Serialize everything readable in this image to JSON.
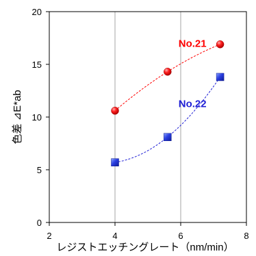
{
  "chart_data": {
    "type": "scatter",
    "xlabel": "レジストエッチングレート（nm/min）",
    "ylabel": "色差 ⊿E*ab",
    "xlim": [
      2,
      8
    ],
    "ylim": [
      0,
      20
    ],
    "xticks": [
      "2",
      "4",
      "6",
      "8"
    ],
    "yticks": [
      "0",
      "5",
      "10",
      "15",
      "20"
    ],
    "grid": "vertical",
    "series": [
      {
        "name": "No.21",
        "color": "#ff0000",
        "marker": "circle",
        "trendline": "dashed",
        "x": [
          4.0,
          5.6,
          7.2
        ],
        "y": [
          10.6,
          14.3,
          16.9
        ]
      },
      {
        "name": "No.22",
        "color": "#1f1fd6",
        "marker": "square",
        "trendline": "dashed",
        "x": [
          4.0,
          5.6,
          7.2
        ],
        "y": [
          5.7,
          8.1,
          13.8
        ]
      }
    ]
  }
}
